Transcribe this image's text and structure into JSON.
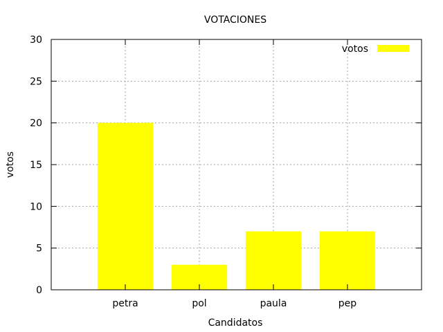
{
  "chart_data": {
    "type": "bar",
    "title": "VOTACIONES",
    "xlabel": "Candidatos",
    "ylabel": "votos",
    "categories": [
      "petra",
      "pol",
      "paula",
      "pep"
    ],
    "series": [
      {
        "name": "votos",
        "values": [
          20,
          3,
          7,
          7
        ],
        "color": "#ffff00"
      }
    ],
    "xlim": [
      -1,
      4
    ],
    "ylim": [
      0,
      30
    ],
    "yticks": [
      0,
      5,
      10,
      15,
      20,
      25,
      30
    ],
    "grid": true,
    "legend": "top-right"
  }
}
